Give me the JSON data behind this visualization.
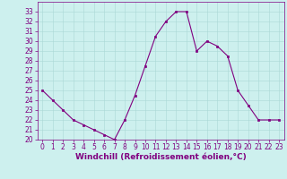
{
  "x": [
    0,
    1,
    2,
    3,
    4,
    5,
    6,
    7,
    8,
    9,
    10,
    11,
    12,
    13,
    14,
    15,
    16,
    17,
    18,
    19,
    20,
    21,
    22,
    23
  ],
  "y": [
    25,
    24,
    23,
    22,
    21.5,
    21,
    20.5,
    20,
    22,
    24.5,
    27.5,
    30.5,
    32,
    33,
    33,
    29,
    30,
    29.5,
    28.5,
    25,
    23.5,
    22,
    22,
    22
  ],
  "line_color": "#800080",
  "marker": "s",
  "marker_size": 2,
  "bg_color": "#cdf0ee",
  "grid_color": "#aad8d5",
  "xlabel": "Windchill (Refroidissement éolien,°C)",
  "ylim": [
    20,
    34
  ],
  "xlim": [
    -0.5,
    23.5
  ],
  "yticks": [
    20,
    21,
    22,
    23,
    24,
    25,
    26,
    27,
    28,
    29,
    30,
    31,
    32,
    33
  ],
  "xticks": [
    0,
    1,
    2,
    3,
    4,
    5,
    6,
    7,
    8,
    9,
    10,
    11,
    12,
    13,
    14,
    15,
    16,
    17,
    18,
    19,
    20,
    21,
    22,
    23
  ],
  "tick_color": "#800080",
  "label_color": "#800080",
  "label_fontsize": 6.5,
  "tick_fontsize": 5.5,
  "spine_color": "#800080"
}
